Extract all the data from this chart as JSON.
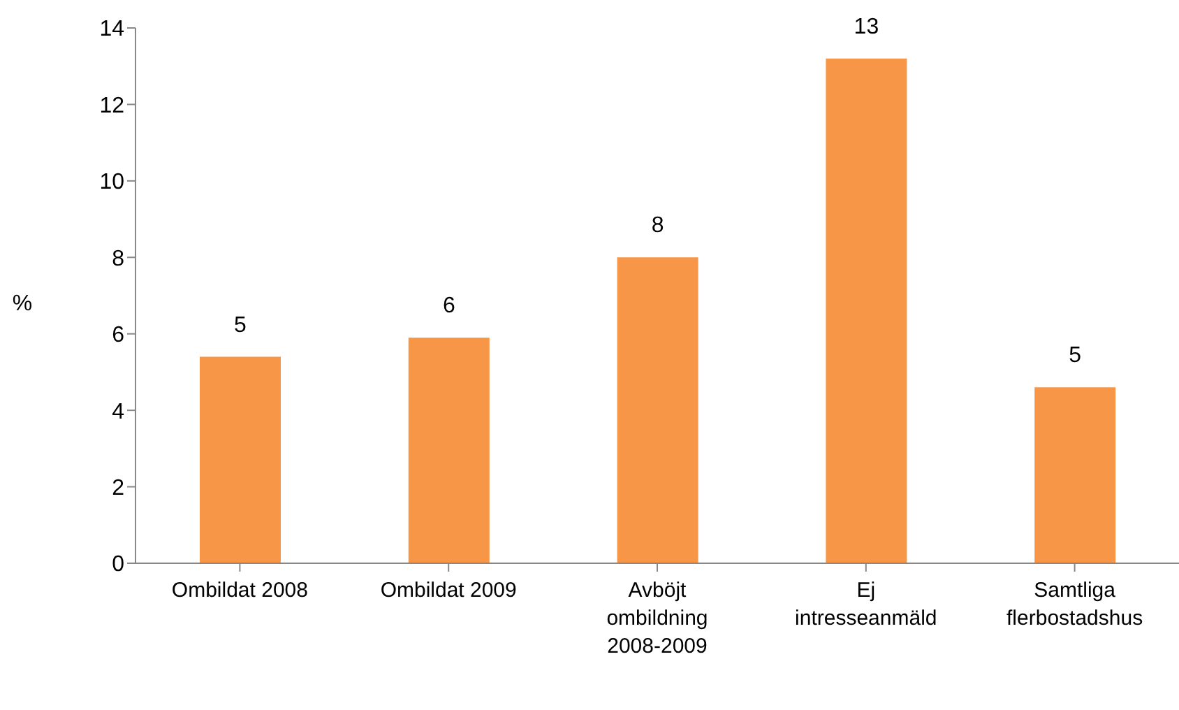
{
  "chart_data": {
    "type": "bar",
    "ylabel": "%",
    "categories": [
      "Ombildat 2008",
      "Ombildat 2009",
      "Avböjt ombildning 2008-2009",
      "Ej intresseanmäld",
      "Samtliga flerbostadshus"
    ],
    "values": [
      5.4,
      5.9,
      8.0,
      13.2,
      4.6
    ],
    "value_labels": [
      "5",
      "6",
      "8",
      "13",
      "5"
    ],
    "color": "#f79646",
    "ylim": [
      0,
      14
    ],
    "yticks": [
      0,
      2,
      4,
      6,
      8,
      10,
      12,
      14
    ],
    "grid": false,
    "legend": false
  }
}
